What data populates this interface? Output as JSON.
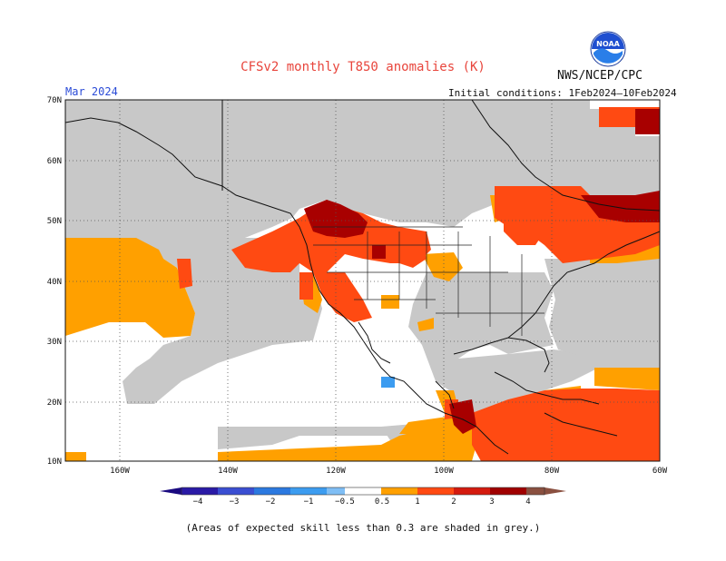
{
  "header": {
    "title": "CFSv2 monthly T850 anomalies (K)",
    "month": "Mar 2024",
    "agency": "NWS/NCEP/CPC",
    "init_conditions": "Initial conditions: 1Feb2024–10Feb2024",
    "logo_text": "NOAA"
  },
  "axes": {
    "lat_labels": [
      "70N",
      "60N",
      "50N",
      "40N",
      "30N",
      "20N",
      "10N"
    ],
    "lon_labels": [
      "160W",
      "140W",
      "120W",
      "100W",
      "80W",
      "60W"
    ]
  },
  "legend": {
    "labels": [
      "−4",
      "−3",
      "−2",
      "−1",
      "−0.5",
      "0.5",
      "1",
      "2",
      "3",
      "4"
    ],
    "colors": [
      "#2a1aa6",
      "#3a4ed2",
      "#2b79e0",
      "#3c9cf0",
      "#7fbef5",
      "#ffffff",
      "#ffa000",
      "#ff4a12",
      "#d41a0e",
      "#a00000",
      "#c89a8a",
      "#8a5040"
    ]
  },
  "footnote": "(Areas of expected skill less than 0.3 are shaded in grey.)"
}
